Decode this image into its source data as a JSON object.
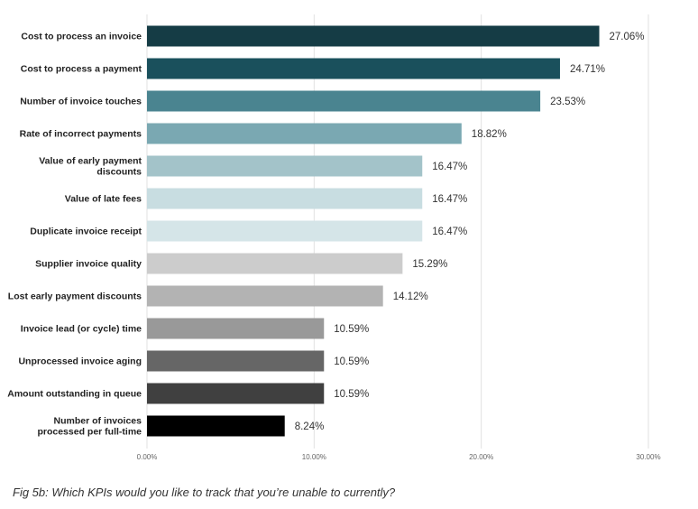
{
  "caption": "Fig 5b: Which KPIs would you like to track that you’re unable to currently?",
  "chart_data": {
    "type": "bar",
    "orientation": "horizontal",
    "categories": [
      "Cost to process an invoice",
      "Cost to process a payment",
      "Number of invoice touches",
      "Rate of incorrect payments",
      "Value of early payment discounts",
      "Value of late fees",
      "Duplicate invoice receipt",
      "Supplier invoice quality",
      "Lost early payment discounts",
      "Invoice lead (or cycle) time",
      "Unprocessed invoice aging",
      "Amount outstanding in queue",
      "Number of invoices processed per full-time"
    ],
    "category_lines": [
      [
        "Cost to process an invoice"
      ],
      [
        "Cost to process a payment"
      ],
      [
        "Number of invoice touches"
      ],
      [
        "Rate of incorrect payments"
      ],
      [
        "Value of early payment",
        "discounts"
      ],
      [
        "Value of late fees"
      ],
      [
        "Duplicate invoice receipt"
      ],
      [
        "Supplier invoice quality"
      ],
      [
        "Lost early payment discounts"
      ],
      [
        "Invoice lead (or cycle) time"
      ],
      [
        "Unprocessed invoice aging"
      ],
      [
        "Amount outstanding in queue"
      ],
      [
        "Number of invoices",
        "processed per full-time"
      ]
    ],
    "values": [
      27.06,
      24.71,
      23.53,
      18.82,
      16.47,
      16.47,
      16.47,
      15.29,
      14.12,
      10.59,
      10.59,
      10.59,
      8.24
    ],
    "value_labels": [
      "27.06%",
      "24.71%",
      "23.53%",
      "18.82%",
      "16.47%",
      "16.47%",
      "16.47%",
      "15.29%",
      "14.12%",
      "10.59%",
      "10.59%",
      "10.59%",
      "8.24%"
    ],
    "colors": [
      "#153c45",
      "#1a505c",
      "#4a8490",
      "#7aa8b2",
      "#a3c3c9",
      "#c8dde1",
      "#d5e5e8",
      "#cccccc",
      "#b3b3b3",
      "#999999",
      "#666666",
      "#404040",
      "#000000"
    ],
    "xlim": [
      0,
      30
    ],
    "xticks": [
      0,
      10,
      20,
      30
    ],
    "xtick_labels": [
      "0.00%",
      "10.00%",
      "20.00%",
      "30.00%"
    ],
    "grid": true
  }
}
